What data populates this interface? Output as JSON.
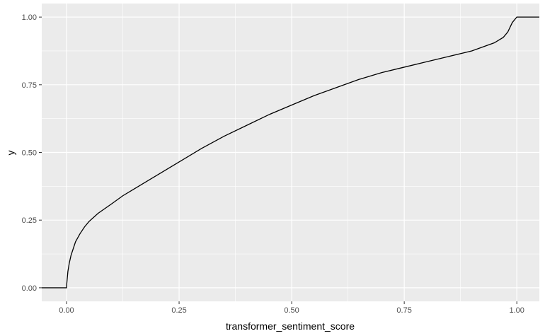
{
  "chart_data": {
    "type": "line",
    "subtype": "ecdf-step",
    "title": "",
    "xlabel": "transformer_sentiment_score",
    "ylabel": "y",
    "xlim": [
      -0.055,
      1.05
    ],
    "ylim": [
      -0.05,
      1.05
    ],
    "x_ticks": [
      0.0,
      0.25,
      0.5,
      0.75,
      1.0
    ],
    "x_tick_labels": [
      "0.00",
      "0.25",
      "0.50",
      "0.75",
      "1.00"
    ],
    "y_ticks": [
      0.0,
      0.25,
      0.5,
      0.75,
      1.0
    ],
    "y_tick_labels": [
      "0.00",
      "0.25",
      "0.50",
      "0.75",
      "1.00"
    ],
    "grid": true,
    "legend": "none",
    "colors": {
      "panel": "#ebebeb",
      "grid": "#ffffff",
      "line": "#000000"
    },
    "series": [
      {
        "x": [
          -0.055,
          0.0,
          0.0,
          0.003,
          0.006,
          0.01,
          0.015,
          0.02,
          0.03,
          0.04,
          0.05,
          0.07,
          0.1,
          0.125,
          0.15,
          0.2,
          0.25,
          0.3,
          0.35,
          0.4,
          0.45,
          0.5,
          0.55,
          0.6,
          0.65,
          0.7,
          0.75,
          0.8,
          0.85,
          0.9,
          0.95,
          0.97,
          0.98,
          0.99,
          1.0,
          1.05
        ],
        "y": [
          0.0,
          0.0,
          0.005,
          0.06,
          0.09,
          0.12,
          0.145,
          0.17,
          0.2,
          0.225,
          0.245,
          0.275,
          0.31,
          0.34,
          0.365,
          0.415,
          0.465,
          0.515,
          0.56,
          0.6,
          0.64,
          0.675,
          0.71,
          0.74,
          0.77,
          0.795,
          0.815,
          0.835,
          0.855,
          0.875,
          0.905,
          0.925,
          0.945,
          0.98,
          1.0,
          1.0
        ]
      }
    ]
  }
}
